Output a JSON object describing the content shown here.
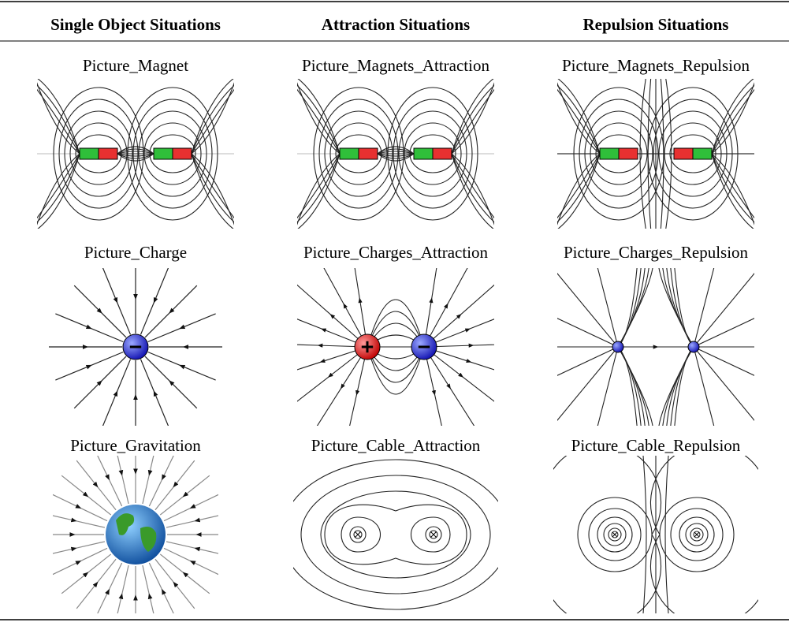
{
  "table": {
    "header": [
      "Single Object Situations",
      "Attraction Situations",
      "Repulsion Situations"
    ],
    "rows": [
      [
        "Picture_Magnet",
        "Picture_Magnets_Attraction",
        "Picture_Magnets_Repulsion"
      ],
      [
        "Picture_Charge",
        "Picture_Charges_Attraction",
        "Picture_Charges_Repulsion"
      ],
      [
        "Picture_Gravitation",
        "Picture_Cable_Attraction",
        "Picture_Cable_Repulsion"
      ]
    ]
  }
}
